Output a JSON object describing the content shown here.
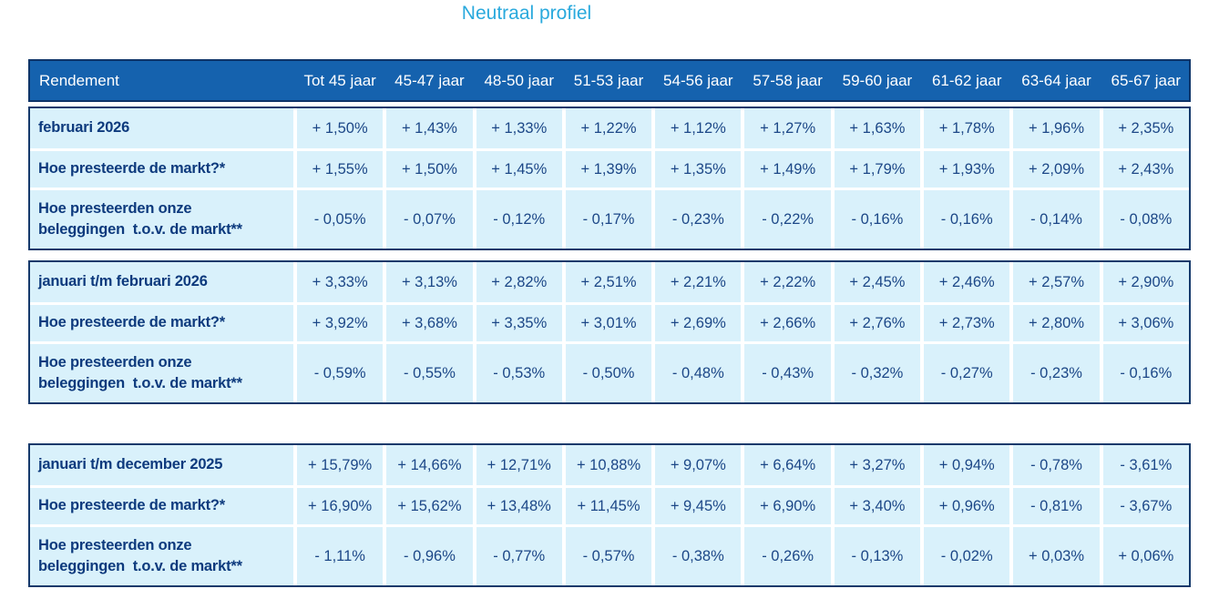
{
  "title": "Neutraal profiel",
  "colors": {
    "title_accent": "#29a9dd",
    "header_bg": "#1562ae",
    "header_text": "#ffffff",
    "cell_bg": "#d9f1fb",
    "section_border": "#15396b",
    "label_text": "#0d3a7d",
    "value_text": "#1c4787"
  },
  "table": {
    "header": [
      "Rendement",
      "Tot 45 jaar",
      "45-47 jaar",
      "48-50 jaar",
      "51-53 jaar",
      "54-56 jaar",
      "57-58 jaar",
      "59-60 jaar",
      "61-62 jaar",
      "63-64 jaar",
      "65-67 jaar"
    ],
    "sections": [
      {
        "rows": [
          {
            "label": "februari 2026",
            "values": [
              "+ 1,50%",
              "+ 1,43%",
              "+ 1,33%",
              "+ 1,22%",
              "+ 1,12%",
              "+ 1,27%",
              "+ 1,63%",
              "+ 1,78%",
              "+ 1,96%",
              "+ 2,35%"
            ]
          },
          {
            "label": "Hoe presteerde de markt?*",
            "values": [
              "+ 1,55%",
              "+ 1,50%",
              "+ 1,45%",
              "+ 1,39%",
              "+ 1,35%",
              "+ 1,49%",
              "+ 1,79%",
              "+ 1,93%",
              "+ 2,09%",
              "+ 2,43%"
            ]
          },
          {
            "label": "Hoe presteerden onze\nbeleggingen  t.o.v. de markt**",
            "values": [
              "- 0,05%",
              "- 0,07%",
              "- 0,12%",
              "- 0,17%",
              "- 0,23%",
              "- 0,22%",
              "- 0,16%",
              "- 0,16%",
              "- 0,14%",
              "- 0,08%"
            ]
          }
        ]
      },
      {
        "rows": [
          {
            "label": "januari t/m februari 2026",
            "values": [
              "+ 3,33%",
              "+ 3,13%",
              "+ 2,82%",
              "+ 2,51%",
              "+ 2,21%",
              "+ 2,22%",
              "+ 2,45%",
              "+ 2,46%",
              "+ 2,57%",
              "+ 2,90%"
            ]
          },
          {
            "label": "Hoe presteerde de markt?*",
            "values": [
              "+ 3,92%",
              "+ 3,68%",
              "+ 3,35%",
              "+ 3,01%",
              "+ 2,69%",
              "+ 2,66%",
              "+ 2,76%",
              "+ 2,73%",
              "+ 2,80%",
              "+ 3,06%"
            ]
          },
          {
            "label": "Hoe presteerden onze\nbeleggingen  t.o.v. de markt**",
            "values": [
              "- 0,59%",
              "- 0,55%",
              "- 0,53%",
              "- 0,50%",
              "- 0,48%",
              "- 0,43%",
              "- 0,32%",
              "- 0,27%",
              "- 0,23%",
              "- 0,16%"
            ]
          }
        ]
      },
      {
        "rows": [
          {
            "label": "januari t/m december 2025",
            "values": [
              "+ 15,79%",
              "+ 14,66%",
              "+ 12,71%",
              "+ 10,88%",
              "+ 9,07%",
              "+ 6,64%",
              "+ 3,27%",
              "+ 0,94%",
              "- 0,78%",
              "- 3,61%"
            ]
          },
          {
            "label": "Hoe presteerde de markt?*",
            "values": [
              "+ 16,90%",
              "+ 15,62%",
              "+ 13,48%",
              "+ 11,45%",
              "+ 9,45%",
              "+ 6,90%",
              "+ 3,40%",
              "+ 0,96%",
              "- 0,81%",
              "- 3,67%"
            ]
          },
          {
            "label": "Hoe presteerden onze\nbeleggingen  t.o.v. de markt**",
            "values": [
              "- 1,11%",
              "- 0,96%",
              "- 0,77%",
              "- 0,57%",
              "- 0,38%",
              "- 0,26%",
              "- 0,13%",
              "- 0,02%",
              "+ 0,03%",
              "+ 0,06%"
            ]
          }
        ]
      }
    ]
  }
}
